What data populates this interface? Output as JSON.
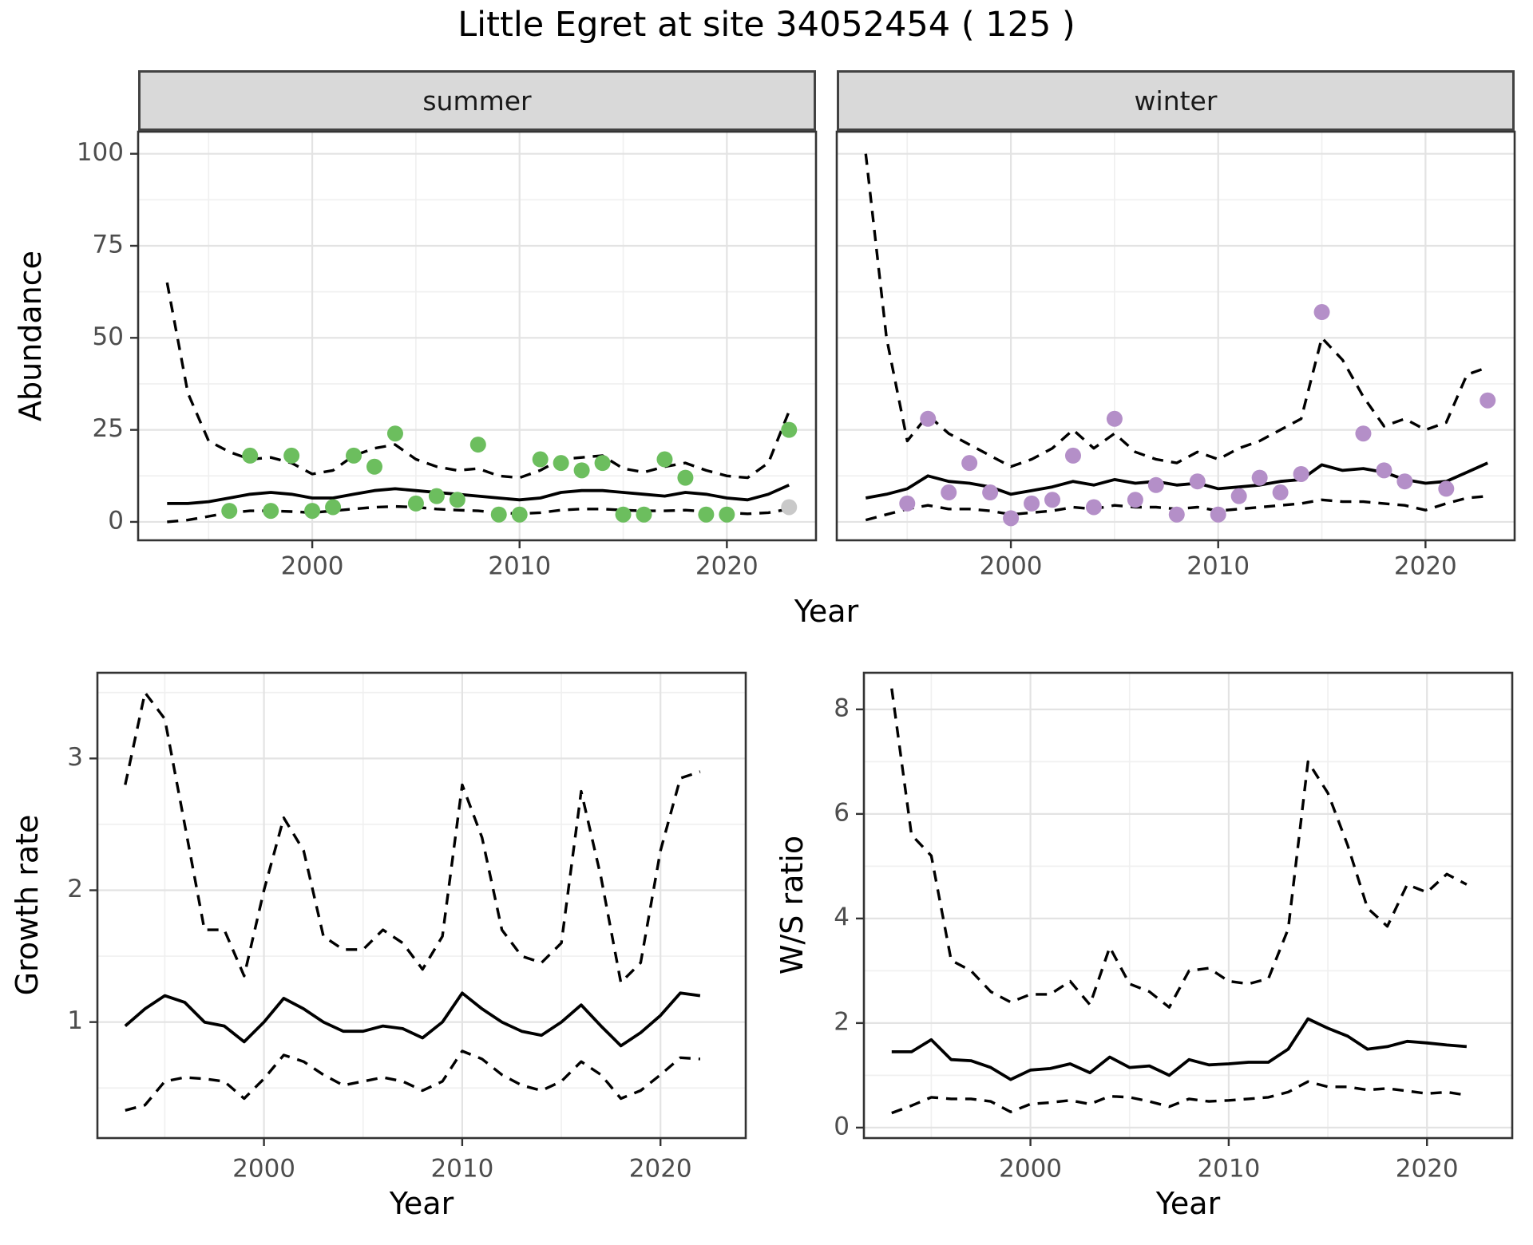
{
  "title": "Little Egret at site 34052454 ( 125 )",
  "colors": {
    "summer_point": "#6cbe5e",
    "winter_point": "#b48fc8",
    "incomplete_point": "#c9c9c9",
    "line": "#000000",
    "panel_border": "#333333",
    "strip_bg": "#d9d9d9",
    "grid_major": "#e3e3e3",
    "grid_minor": "#f0f0f0",
    "tick": "#333333",
    "axis_text": "#4d4d4d"
  },
  "chart_data": [
    {
      "id": "abundance-summer",
      "type": "line",
      "facet_label": "summer",
      "ylabel": "Abundance",
      "xlabel": "Year",
      "xlim": [
        1991.6,
        2024.3
      ],
      "ylim": [
        -5,
        106
      ],
      "xticks": [
        2000,
        2010,
        2020
      ],
      "xticks_minor": [
        1995,
        2005,
        2015
      ],
      "yticks": [
        0,
        25,
        50,
        75,
        100
      ],
      "yticks_minor": [
        12.5,
        37.5,
        62.5,
        87.5
      ],
      "grid": true,
      "legend": "none",
      "x": [
        1993,
        1994,
        1995,
        1996,
        1997,
        1998,
        1999,
        2000,
        2001,
        2002,
        2003,
        2004,
        2005,
        2006,
        2007,
        2008,
        2009,
        2010,
        2011,
        2012,
        2013,
        2014,
        2015,
        2016,
        2017,
        2018,
        2019,
        2020,
        2021,
        2022,
        2023
      ],
      "series": [
        {
          "name": "upper_95ci",
          "style": "dashed",
          "values": [
            65,
            35,
            22,
            19,
            17,
            17.5,
            16,
            13,
            14,
            18,
            20,
            21,
            17,
            15,
            14,
            14.5,
            12.5,
            12,
            14,
            17,
            17.5,
            18,
            14.5,
            13.5,
            15,
            16,
            14,
            12.5,
            12,
            16,
            30
          ]
        },
        {
          "name": "lower_95ci",
          "style": "dashed",
          "values": [
            0,
            0.5,
            1.5,
            2.5,
            3,
            3,
            2.8,
            2.5,
            3,
            3.5,
            4,
            4.2,
            4,
            3.5,
            3.2,
            3,
            2.5,
            2.2,
            2.5,
            3.2,
            3.5,
            3.5,
            3.2,
            3,
            3,
            3.2,
            2.8,
            2.5,
            2.2,
            2.5,
            3.5
          ]
        },
        {
          "name": "smoothed_mean",
          "style": "solid",
          "values": [
            5,
            5,
            5.5,
            6.5,
            7.5,
            8,
            7.5,
            6.5,
            6.5,
            7.5,
            8.5,
            9,
            8.5,
            8,
            7.5,
            7,
            6.5,
            6,
            6.5,
            8,
            8.5,
            8.5,
            8,
            7.5,
            7,
            8,
            7.5,
            6.5,
            6,
            7.5,
            10
          ]
        },
        {
          "name": "incomplete_count",
          "style": "points",
          "color_key": "incomplete_point",
          "x": [
            2023
          ],
          "values": [
            4
          ]
        },
        {
          "name": "observed_counts",
          "style": "points",
          "color_key": "summer_point",
          "x": [
            1996,
            1997,
            1998,
            1999,
            2000,
            2001,
            2002,
            2003,
            2004,
            2005,
            2006,
            2007,
            2008,
            2009,
            2010,
            2011,
            2012,
            2013,
            2014,
            2015,
            2016,
            2017,
            2018,
            2019,
            2020,
            2023
          ],
          "values": [
            3,
            18,
            3,
            18,
            3,
            4,
            18,
            15,
            24,
            5,
            7,
            6,
            21,
            2,
            2,
            17,
            16,
            14,
            16,
            2,
            2,
            17,
            12,
            2,
            2,
            25
          ]
        }
      ]
    },
    {
      "id": "abundance-winter",
      "type": "line",
      "facet_label": "winter",
      "xlim": [
        1991.6,
        2024.3
      ],
      "ylim": [
        -5,
        106
      ],
      "xticks": [
        2000,
        2010,
        2020
      ],
      "xticks_minor": [
        1995,
        2005,
        2015
      ],
      "yticks": [
        0,
        25,
        50,
        75,
        100
      ],
      "yticks_minor": [
        12.5,
        37.5,
        62.5,
        87.5
      ],
      "grid": true,
      "legend": "none",
      "x": [
        1993,
        1994,
        1995,
        1996,
        1997,
        1998,
        1999,
        2000,
        2001,
        2002,
        2003,
        2004,
        2005,
        2006,
        2007,
        2008,
        2009,
        2010,
        2011,
        2012,
        2013,
        2014,
        2015,
        2016,
        2017,
        2018,
        2019,
        2020,
        2021,
        2022,
        2023
      ],
      "series": [
        {
          "name": "upper_95ci",
          "style": "dashed",
          "values": [
            100,
            50,
            22,
            29,
            24,
            21,
            18,
            15,
            17,
            20,
            25,
            20,
            24,
            19,
            17,
            16,
            19,
            17,
            20,
            22,
            25,
            28,
            50,
            44,
            34,
            26,
            28,
            25,
            27,
            40,
            42
          ]
        },
        {
          "name": "lower_95ci",
          "style": "dashed",
          "values": [
            0.5,
            2,
            3.5,
            4.5,
            3.5,
            3.5,
            3,
            2,
            2.5,
            3,
            4,
            3.5,
            4.5,
            4,
            4,
            3.5,
            4,
            3,
            3.5,
            4,
            4.5,
            5,
            6,
            5.5,
            5.5,
            5,
            4.5,
            3.2,
            5,
            6.5,
            7
          ]
        },
        {
          "name": "smoothed_mean",
          "style": "solid",
          "values": [
            6.5,
            7.5,
            9,
            12.5,
            11,
            10.5,
            9.5,
            7.5,
            8.5,
            9.5,
            11,
            10,
            11.5,
            10.5,
            11,
            10,
            10.5,
            9,
            9.5,
            10,
            11,
            11.5,
            15.5,
            14,
            14.5,
            13.5,
            11.5,
            10.5,
            11,
            13.5,
            16
          ]
        },
        {
          "name": "observed_counts",
          "style": "points",
          "color_key": "winter_point",
          "x": [
            1995,
            1996,
            1997,
            1998,
            1999,
            2000,
            2001,
            2002,
            2003,
            2004,
            2005,
            2006,
            2007,
            2008,
            2009,
            2010,
            2011,
            2012,
            2013,
            2014,
            2015,
            2017,
            2018,
            2019,
            2021,
            2023
          ],
          "values": [
            5,
            28,
            8,
            16,
            8,
            1,
            5,
            6,
            18,
            4,
            28,
            6,
            10,
            2,
            11,
            2,
            7,
            12,
            8,
            13,
            57,
            24,
            14,
            11,
            9,
            33
          ]
        }
      ]
    },
    {
      "id": "growth-rate",
      "type": "line",
      "ylabel": "Growth rate",
      "xlabel": "Year",
      "xlim": [
        1991.6,
        2024.3
      ],
      "ylim": [
        0.12,
        3.65
      ],
      "xticks": [
        2000,
        2010,
        2020
      ],
      "xticks_minor": [
        1995,
        2005,
        2015
      ],
      "yticks": [
        1,
        2,
        3
      ],
      "yticks_minor": [
        0.5,
        1.5,
        2.5,
        3.5
      ],
      "grid": true,
      "legend": "none",
      "x": [
        1993,
        1994,
        1995,
        1996,
        1997,
        1998,
        1999,
        2000,
        2001,
        2002,
        2003,
        2004,
        2005,
        2006,
        2007,
        2008,
        2009,
        2010,
        2011,
        2012,
        2013,
        2014,
        2015,
        2016,
        2017,
        2018,
        2019,
        2020,
        2021,
        2022
      ],
      "series": [
        {
          "name": "upper_95ci",
          "style": "dashed",
          "values": [
            2.8,
            3.5,
            3.3,
            2.5,
            1.7,
            1.7,
            1.35,
            2.0,
            2.55,
            2.3,
            1.65,
            1.55,
            1.55,
            1.7,
            1.6,
            1.4,
            1.65,
            2.8,
            2.4,
            1.7,
            1.5,
            1.45,
            1.6,
            2.75,
            2.1,
            1.3,
            1.45,
            2.3,
            2.85,
            2.9
          ]
        },
        {
          "name": "lower_95ci",
          "style": "dashed",
          "values": [
            0.33,
            0.37,
            0.55,
            0.58,
            0.57,
            0.55,
            0.42,
            0.57,
            0.75,
            0.7,
            0.6,
            0.52,
            0.55,
            0.58,
            0.55,
            0.48,
            0.55,
            0.78,
            0.72,
            0.6,
            0.52,
            0.48,
            0.55,
            0.7,
            0.6,
            0.42,
            0.48,
            0.6,
            0.73,
            0.72
          ]
        },
        {
          "name": "smoothed_mean",
          "style": "solid",
          "values": [
            0.97,
            1.1,
            1.2,
            1.15,
            1.0,
            0.97,
            0.85,
            1.0,
            1.18,
            1.1,
            1.0,
            0.93,
            0.93,
            0.97,
            0.95,
            0.88,
            1.0,
            1.22,
            1.1,
            1.0,
            0.93,
            0.9,
            1.0,
            1.13,
            0.97,
            0.82,
            0.92,
            1.05,
            1.22,
            1.2
          ]
        }
      ]
    },
    {
      "id": "ws-ratio",
      "type": "line",
      "ylabel": "W/S ratio",
      "xlabel": "Year",
      "xlim": [
        1991.6,
        2024.3
      ],
      "ylim": [
        -0.2,
        8.7
      ],
      "xticks": [
        2000,
        2010,
        2020
      ],
      "xticks_minor": [
        1995,
        2005,
        2015
      ],
      "yticks": [
        0,
        2,
        4,
        6,
        8
      ],
      "yticks_minor": [
        1,
        3,
        5,
        7
      ],
      "grid": true,
      "legend": "none",
      "x": [
        1993,
        1994,
        1995,
        1996,
        1997,
        1998,
        1999,
        2000,
        2001,
        2002,
        2003,
        2004,
        2005,
        2006,
        2007,
        2008,
        2009,
        2010,
        2011,
        2012,
        2013,
        2014,
        2015,
        2016,
        2017,
        2018,
        2019,
        2020,
        2021,
        2022
      ],
      "series": [
        {
          "name": "upper_95ci",
          "style": "dashed",
          "values": [
            8.4,
            5.6,
            5.2,
            3.2,
            3.0,
            2.6,
            2.4,
            2.55,
            2.55,
            2.8,
            2.35,
            3.45,
            2.75,
            2.6,
            2.3,
            3.0,
            3.05,
            2.8,
            2.75,
            2.85,
            3.8,
            7.0,
            6.4,
            5.4,
            4.2,
            3.85,
            4.65,
            4.5,
            4.85,
            4.65
          ]
        },
        {
          "name": "lower_95ci",
          "style": "dashed",
          "values": [
            0.28,
            0.42,
            0.58,
            0.55,
            0.55,
            0.5,
            0.3,
            0.45,
            0.48,
            0.52,
            0.45,
            0.6,
            0.58,
            0.5,
            0.4,
            0.55,
            0.5,
            0.52,
            0.55,
            0.58,
            0.68,
            0.88,
            0.78,
            0.78,
            0.72,
            0.75,
            0.7,
            0.65,
            0.68,
            0.62
          ]
        },
        {
          "name": "smoothed_mean",
          "style": "solid",
          "values": [
            1.45,
            1.45,
            1.68,
            1.3,
            1.28,
            1.15,
            0.92,
            1.1,
            1.13,
            1.22,
            1.05,
            1.35,
            1.15,
            1.18,
            1.0,
            1.3,
            1.2,
            1.22,
            1.25,
            1.25,
            1.5,
            2.08,
            1.9,
            1.75,
            1.5,
            1.55,
            1.65,
            1.62,
            1.58,
            1.55
          ]
        }
      ]
    }
  ]
}
